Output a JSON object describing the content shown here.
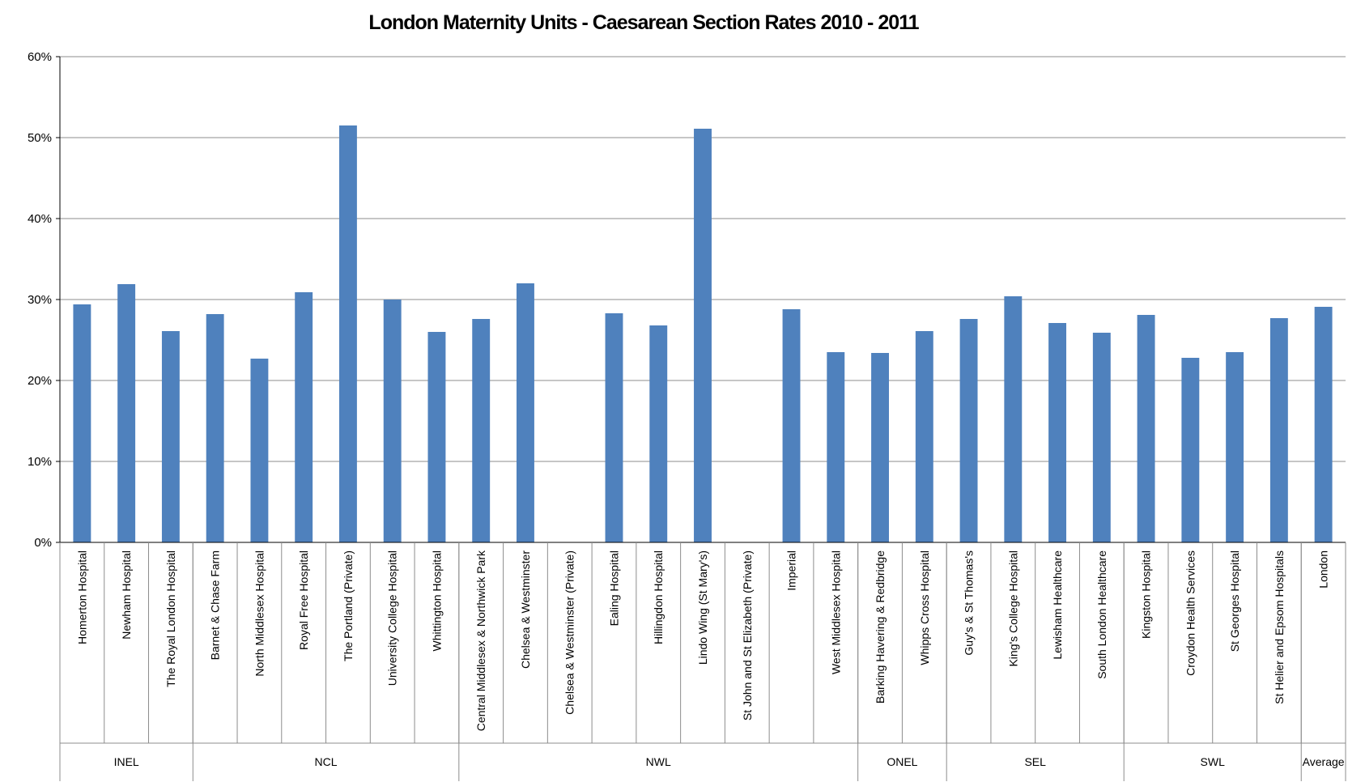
{
  "chart_data": {
    "type": "bar",
    "title": "London Maternity Units - Caesarean Section Rates 2010 - 2011",
    "xlabel": "",
    "ylabel": "",
    "ylim": [
      0,
      60
    ],
    "y_ticks": [
      "0%",
      "10%",
      "20%",
      "30%",
      "40%",
      "50%",
      "60%"
    ],
    "y_tick_values": [
      0,
      10,
      20,
      30,
      40,
      50,
      60
    ],
    "grid": true,
    "legend": "none",
    "bar_color": "#4F81BD",
    "categories": [
      "Homerton Hospital",
      "Newham Hospital",
      "The Royal London Hospital",
      "Barnet & Chase Farm",
      "North Middlesex Hospital",
      "Royal Free Hospital",
      "The Portland (Private)",
      "University College Hospital",
      "Whittington Hospital",
      "Central Middlesex & Northwick Park",
      "Chelsea & Westminster",
      "Chelsea & Westminster (Private)",
      "Ealing Hospital",
      "Hillingdon Hospital",
      "Lindo Wing (St Mary's)",
      "St John and St Elizabeth (Private)",
      "Imperial",
      "West Middlesex Hospital",
      "Barking Havering & Redbridge",
      "Whipps Cross Hospital",
      "Guy's & St Thomas's",
      "King's College Hospital",
      "Lewisham Healthcare",
      "South London Healthcare",
      "Kingston Hospital",
      "Croydon Health Services",
      "St Georges Hospital",
      "St Helier and Epsom Hospitals",
      "London"
    ],
    "values": [
      29.4,
      31.9,
      26.1,
      28.2,
      22.7,
      30.9,
      51.5,
      30.0,
      26.0,
      27.6,
      32.0,
      null,
      28.3,
      26.8,
      51.1,
      null,
      28.8,
      23.5,
      23.4,
      26.1,
      27.6,
      30.4,
      27.1,
      25.9,
      28.1,
      22.8,
      23.5,
      27.7,
      29.1
    ],
    "groups": [
      {
        "label": "INEL",
        "count": 3
      },
      {
        "label": "NCL",
        "count": 6
      },
      {
        "label": "NWL",
        "count": 9
      },
      {
        "label": "ONEL",
        "count": 2
      },
      {
        "label": "SEL",
        "count": 4
      },
      {
        "label": "SWL",
        "count": 4
      },
      {
        "label": "Average",
        "count": 1
      }
    ]
  }
}
